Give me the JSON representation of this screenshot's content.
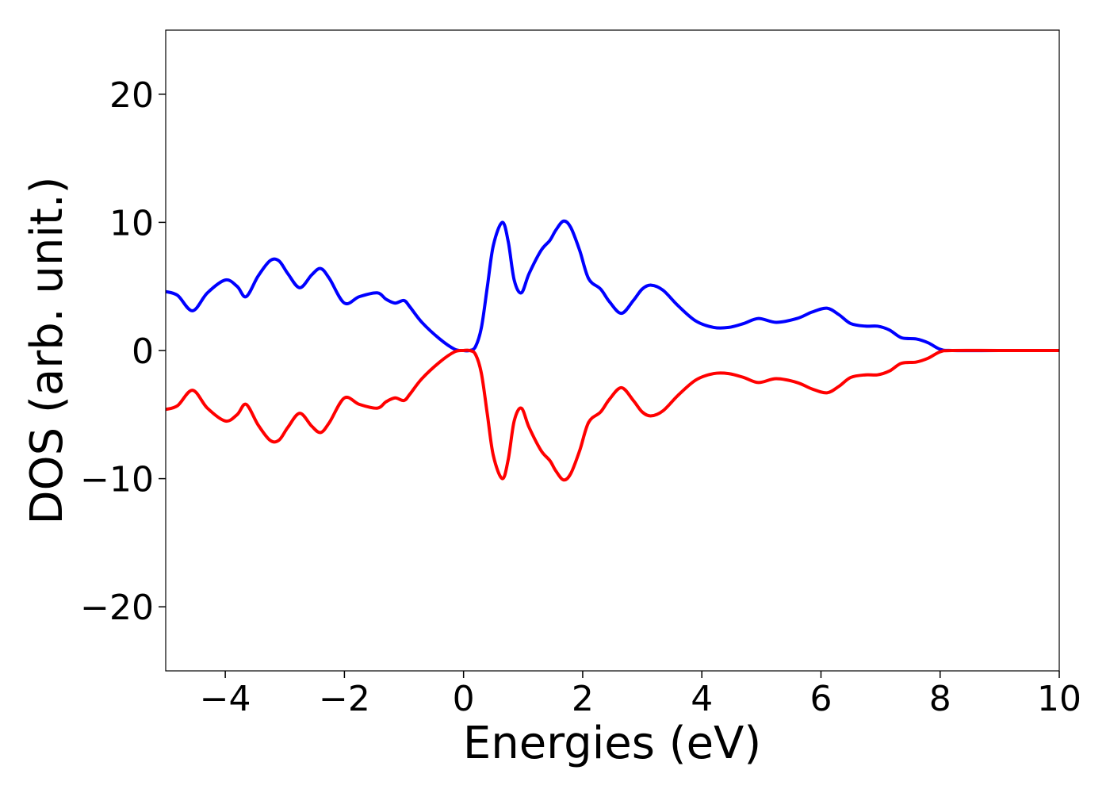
{
  "chart_data": {
    "type": "line",
    "title": "",
    "xlabel": "Energies (eV)",
    "ylabel": "DOS (arb. unit.)",
    "xlim": [
      -5,
      10
    ],
    "ylim": [
      -25,
      25
    ],
    "xticks": [
      -4,
      -2,
      0,
      2,
      4,
      6,
      8,
      10
    ],
    "yticks": [
      -20,
      -10,
      0,
      10,
      20
    ],
    "xtick_labels": [
      "−4",
      "−2",
      "0",
      "2",
      "4",
      "6",
      "8",
      "10"
    ],
    "ytick_labels": [
      "−20",
      "−10",
      "0",
      "10",
      "20"
    ],
    "grid": false,
    "legend": "none",
    "series": [
      {
        "color": "#0000ff",
        "x": [
          -5.0,
          -4.8,
          -4.55,
          -4.3,
          -4.0,
          -3.8,
          -3.65,
          -3.45,
          -3.25,
          -3.1,
          -2.95,
          -2.75,
          -2.55,
          -2.4,
          -2.25,
          -2.0,
          -1.75,
          -1.45,
          -1.3,
          -1.15,
          -1.0,
          -0.9,
          -0.7,
          -0.4,
          -0.15,
          0.0,
          0.1,
          0.2,
          0.3,
          0.4,
          0.5,
          0.65,
          0.75,
          0.85,
          0.97,
          1.1,
          1.3,
          1.45,
          1.55,
          1.68,
          1.8,
          1.95,
          2.1,
          2.3,
          2.45,
          2.65,
          2.85,
          3.0,
          3.15,
          3.35,
          3.6,
          3.9,
          4.2,
          4.45,
          4.7,
          4.95,
          5.25,
          5.6,
          5.85,
          6.1,
          6.3,
          6.5,
          6.75,
          6.95,
          7.15,
          7.35,
          7.6,
          7.8,
          8.0,
          8.2,
          9.0,
          10.0
        ],
        "values": [
          4.6,
          4.3,
          3.1,
          4.5,
          5.5,
          5.0,
          4.2,
          5.8,
          7.0,
          7.0,
          6.0,
          4.9,
          5.9,
          6.4,
          5.6,
          3.7,
          4.2,
          4.5,
          4.0,
          3.7,
          3.9,
          3.4,
          2.2,
          0.9,
          0.1,
          0.0,
          0.0,
          0.3,
          1.8,
          5.0,
          8.2,
          10.0,
          8.5,
          5.5,
          4.5,
          6.0,
          7.8,
          8.6,
          9.4,
          10.1,
          9.6,
          7.8,
          5.6,
          4.8,
          3.8,
          2.9,
          3.9,
          4.8,
          5.1,
          4.7,
          3.5,
          2.3,
          1.8,
          1.8,
          2.1,
          2.5,
          2.2,
          2.5,
          3.0,
          3.3,
          2.8,
          2.1,
          1.9,
          1.9,
          1.6,
          1.0,
          0.9,
          0.6,
          0.1,
          0.0,
          0.0,
          0.0
        ]
      },
      {
        "color": "#ff0000",
        "x": [
          -5.0,
          -4.8,
          -4.55,
          -4.3,
          -4.0,
          -3.8,
          -3.65,
          -3.45,
          -3.25,
          -3.1,
          -2.95,
          -2.75,
          -2.55,
          -2.4,
          -2.25,
          -2.0,
          -1.75,
          -1.45,
          -1.3,
          -1.15,
          -1.0,
          -0.9,
          -0.7,
          -0.4,
          -0.15,
          0.0,
          0.1,
          0.2,
          0.3,
          0.4,
          0.5,
          0.65,
          0.75,
          0.85,
          0.97,
          1.1,
          1.3,
          1.45,
          1.55,
          1.68,
          1.8,
          1.95,
          2.1,
          2.3,
          2.45,
          2.65,
          2.85,
          3.0,
          3.15,
          3.35,
          3.6,
          3.9,
          4.2,
          4.45,
          4.7,
          4.95,
          5.25,
          5.6,
          5.85,
          6.1,
          6.3,
          6.5,
          6.75,
          6.95,
          7.15,
          7.35,
          7.6,
          7.8,
          8.0,
          8.2,
          9.0,
          10.0
        ],
        "values": [
          -4.6,
          -4.3,
          -3.1,
          -4.5,
          -5.5,
          -5.0,
          -4.2,
          -5.8,
          -7.0,
          -7.0,
          -6.0,
          -4.9,
          -5.9,
          -6.4,
          -5.6,
          -3.7,
          -4.2,
          -4.5,
          -4.0,
          -3.7,
          -3.9,
          -3.4,
          -2.2,
          -0.9,
          -0.1,
          0.0,
          0.0,
          -0.3,
          -1.8,
          -5.0,
          -8.2,
          -10.0,
          -8.5,
          -5.5,
          -4.5,
          -6.0,
          -7.8,
          -8.6,
          -9.4,
          -10.1,
          -9.6,
          -7.8,
          -5.6,
          -4.8,
          -3.8,
          -2.9,
          -3.9,
          -4.8,
          -5.1,
          -4.7,
          -3.5,
          -2.3,
          -1.8,
          -1.8,
          -2.1,
          -2.5,
          -2.2,
          -2.5,
          -3.0,
          -3.3,
          -2.8,
          -2.1,
          -1.9,
          -1.9,
          -1.6,
          -1.0,
          -0.9,
          -0.6,
          -0.1,
          0.0,
          0.0,
          0.0
        ]
      }
    ]
  }
}
